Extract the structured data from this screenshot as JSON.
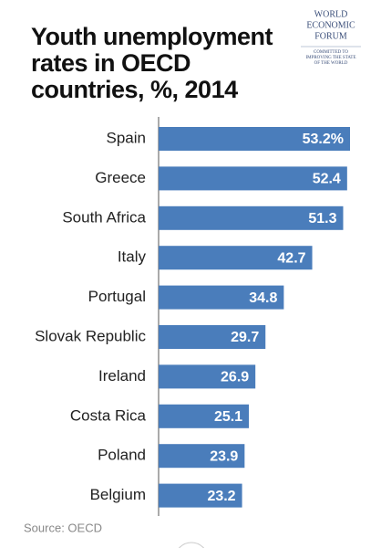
{
  "chart_data": {
    "type": "bar",
    "orientation": "horizontal",
    "title": [
      "Youth unemployment",
      "rates in OECD",
      "countries, %, 2014"
    ],
    "categories": [
      "Spain",
      "Greece",
      "South Africa",
      "Italy",
      "Portugal",
      "Slovak Republic",
      "Ireland",
      "Costa Rica",
      "Poland",
      "Belgium"
    ],
    "values": [
      53.2,
      52.4,
      51.3,
      42.7,
      34.8,
      29.7,
      26.9,
      25.1,
      23.9,
      23.2
    ],
    "value_labels": [
      "53.2%",
      "52.4",
      "51.3",
      "42.7",
      "34.8",
      "29.7",
      "26.9",
      "25.1",
      "23.9",
      "23.2"
    ],
    "color": "#4a7dbb",
    "source": "Source: OECD"
  },
  "logo": {
    "name": [
      "WORLD",
      "ECONOMIC",
      "FORUM"
    ],
    "tagline": [
      "COMMITTED TO",
      "IMPROVING THE STATE",
      "OF THE WORLD"
    ]
  }
}
